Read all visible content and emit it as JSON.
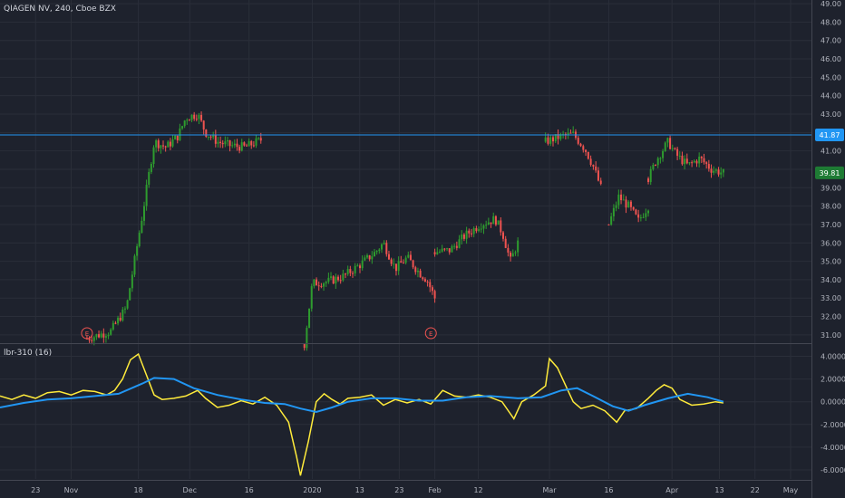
{
  "symbol_legend": "QIAGEN NV, 240, Cboe BZX",
  "indicator_legend": "lbr-310 (16)",
  "colors": {
    "background": "#1e222d",
    "grid": "#2a2e39",
    "up": "#26a69a",
    "up_bright": "#2e9c2e",
    "down": "#ef5350",
    "level_line": "#2196f3",
    "last_price_tag": "#1e7b34",
    "fast_line": "#ffeb3b",
    "slow_line": "#2196f3"
  },
  "horizontal_level": {
    "value": 41.87,
    "label": "41.87"
  },
  "last_price": {
    "value": 39.81,
    "label": "39.81"
  },
  "earnings_markers": [
    {
      "label": "E",
      "x_date": "2019-11-05"
    },
    {
      "label": "E",
      "x_date": "2020-01-31"
    }
  ],
  "chart_data": [
    {
      "type": "candlestick",
      "title": "QIAGEN NV, 240, Cboe BZX",
      "ylim": [
        30.6,
        49.2
      ],
      "y_ticks": [
        "49.00",
        "48.00",
        "47.00",
        "46.00",
        "45.00",
        "44.00",
        "43.00",
        "42.00",
        "41.00",
        "40.00",
        "39.00",
        "38.00",
        "37.00",
        "36.00",
        "35.00",
        "34.00",
        "33.00",
        "32.00",
        "31.00"
      ],
      "x_ticks": [
        "23",
        "Nov",
        "18",
        "Dec",
        "16",
        "2020",
        "13",
        "23",
        "Feb",
        "12",
        "Mar",
        "16",
        "Apr",
        "13",
        "22",
        "May"
      ],
      "segments": [
        {
          "start_date": "2019-11-05",
          "end_date": "2019-12-19",
          "path": [
            [
              30.8,
              0
            ],
            [
              31.2,
              6
            ],
            [
              32.5,
              10
            ],
            [
              37.5,
              14
            ],
            [
              41.5,
              17
            ],
            [
              41.2,
              20
            ],
            [
              41.8,
              23
            ],
            [
              42.8,
              25
            ],
            [
              43.0,
              28
            ],
            [
              42.0,
              30
            ],
            [
              41.5,
              33
            ],
            [
              41.3,
              36
            ],
            [
              41.2,
              40
            ],
            [
              41.6,
              44
            ]
          ]
        },
        {
          "start_date": "2019-12-30",
          "end_date": "2020-02-01",
          "path": [
            [
              30.5,
              0
            ],
            [
              33.8,
              2
            ],
            [
              33.9,
              6
            ],
            [
              34.2,
              10
            ],
            [
              34.8,
              14
            ],
            [
              35.5,
              18
            ],
            [
              36.0,
              20
            ],
            [
              34.6,
              23
            ],
            [
              35.2,
              26
            ],
            [
              34.4,
              29
            ],
            [
              34.0,
              31
            ],
            [
              33.0,
              33
            ]
          ]
        },
        {
          "start_date": "2020-02-01",
          "end_date": "2020-02-22",
          "path": [
            [
              35.5,
              0
            ],
            [
              35.6,
              4
            ],
            [
              36.4,
              8
            ],
            [
              37.0,
              12
            ],
            [
              37.3,
              16
            ],
            [
              36.5,
              18
            ],
            [
              35.0,
              20
            ],
            [
              36.0,
              22
            ]
          ]
        },
        {
          "start_date": "2020-02-29",
          "end_date": "2020-03-14",
          "path": [
            [
              41.5,
              0
            ],
            [
              41.8,
              4
            ],
            [
              41.9,
              7
            ],
            [
              41.1,
              10
            ],
            [
              40.2,
              12
            ],
            [
              39.0,
              14
            ]
          ]
        },
        {
          "start_date": "2020-03-16",
          "end_date": "2020-03-26",
          "path": [
            [
              37.0,
              0
            ],
            [
              38.5,
              2
            ],
            [
              38.0,
              4
            ],
            [
              37.2,
              6
            ],
            [
              38.0,
              8
            ]
          ]
        },
        {
          "start_date": "2020-03-26",
          "end_date": "2020-04-14",
          "path": [
            [
              39.5,
              0
            ],
            [
              40.5,
              2
            ],
            [
              41.5,
              5
            ],
            [
              40.8,
              7
            ],
            [
              40.2,
              10
            ],
            [
              40.6,
              13
            ],
            [
              40.0,
              16
            ],
            [
              39.8,
              19
            ]
          ]
        }
      ]
    },
    {
      "type": "line",
      "title": "lbr-310 (16)",
      "ylim": [
        -6.8,
        5.0
      ],
      "y_ticks": [
        "4.0000",
        "2.0000",
        "0.0000",
        "-2.0000",
        "-4.0000",
        "-6.0000"
      ],
      "series": [
        {
          "color": "#ffeb3b",
          "points": [
            [
              "2019-10-14",
              0.5
            ],
            [
              "2019-10-17",
              0.2
            ],
            [
              "2019-10-20",
              0.6
            ],
            [
              "2019-10-23",
              0.3
            ],
            [
              "2019-10-26",
              0.8
            ],
            [
              "2019-10-29",
              0.9
            ],
            [
              "2019-11-01",
              0.6
            ],
            [
              "2019-11-04",
              1.0
            ],
            [
              "2019-11-07",
              0.9
            ],
            [
              "2019-11-10",
              0.6
            ],
            [
              "2019-11-12",
              1.0
            ],
            [
              "2019-11-14",
              2.0
            ],
            [
              "2019-11-16",
              3.7
            ],
            [
              "2019-11-18",
              4.2
            ],
            [
              "2019-11-20",
              2.4
            ],
            [
              "2019-11-22",
              0.6
            ],
            [
              "2019-11-24",
              0.2
            ],
            [
              "2019-11-27",
              0.3
            ],
            [
              "2019-11-30",
              0.5
            ],
            [
              "2019-12-03",
              1.0
            ],
            [
              "2019-12-05",
              0.3
            ],
            [
              "2019-12-08",
              -0.5
            ],
            [
              "2019-12-11",
              -0.3
            ],
            [
              "2019-12-14",
              0.1
            ],
            [
              "2019-12-17",
              -0.2
            ],
            [
              "2019-12-20",
              0.4
            ],
            [
              "2019-12-23",
              -0.3
            ],
            [
              "2019-12-26",
              -1.8
            ],
            [
              "2019-12-28",
              -4.8
            ],
            [
              "2019-12-29",
              -6.5
            ],
            [
              "2019-12-31",
              -3.5
            ],
            [
              "2020-01-02",
              0.0
            ],
            [
              "2020-01-04",
              0.7
            ],
            [
              "2020-01-06",
              0.2
            ],
            [
              "2020-01-08",
              -0.2
            ],
            [
              "2020-01-10",
              0.3
            ],
            [
              "2020-01-13",
              0.4
            ],
            [
              "2020-01-16",
              0.6
            ],
            [
              "2020-01-19",
              -0.3
            ],
            [
              "2020-01-22",
              0.2
            ],
            [
              "2020-01-25",
              -0.1
            ],
            [
              "2020-01-28",
              0.2
            ],
            [
              "2020-01-31",
              -0.2
            ],
            [
              "2020-02-03",
              1.0
            ],
            [
              "2020-02-06",
              0.5
            ],
            [
              "2020-02-09",
              0.4
            ],
            [
              "2020-02-12",
              0.6
            ],
            [
              "2020-02-15",
              0.4
            ],
            [
              "2020-02-18",
              0.0
            ],
            [
              "2020-02-21",
              -1.5
            ],
            [
              "2020-02-23",
              0.0
            ],
            [
              "2020-02-26",
              0.6
            ],
            [
              "2020-02-29",
              1.4
            ],
            [
              "2020-03-01",
              3.8
            ],
            [
              "2020-03-03",
              3.0
            ],
            [
              "2020-03-05",
              1.5
            ],
            [
              "2020-03-07",
              0.0
            ],
            [
              "2020-03-09",
              -0.6
            ],
            [
              "2020-03-12",
              -0.3
            ],
            [
              "2020-03-15",
              -0.8
            ],
            [
              "2020-03-18",
              -1.8
            ],
            [
              "2020-03-20",
              -0.8
            ],
            [
              "2020-03-23",
              -0.6
            ],
            [
              "2020-03-26",
              0.3
            ],
            [
              "2020-03-28",
              1.0
            ],
            [
              "2020-03-30",
              1.5
            ],
            [
              "2020-04-01",
              1.2
            ],
            [
              "2020-04-03",
              0.2
            ],
            [
              "2020-04-06",
              -0.3
            ],
            [
              "2020-04-09",
              -0.2
            ],
            [
              "2020-04-12",
              0.0
            ],
            [
              "2020-04-14",
              -0.1
            ]
          ]
        },
        {
          "color": "#2196f3",
          "points": [
            [
              "2019-10-14",
              -0.5
            ],
            [
              "2019-10-20",
              -0.1
            ],
            [
              "2019-10-26",
              0.2
            ],
            [
              "2019-11-01",
              0.3
            ],
            [
              "2019-11-07",
              0.5
            ],
            [
              "2019-11-13",
              0.7
            ],
            [
              "2019-11-19",
              1.6
            ],
            [
              "2019-11-22",
              2.1
            ],
            [
              "2019-11-27",
              2.0
            ],
            [
              "2019-12-02",
              1.2
            ],
            [
              "2019-12-08",
              0.6
            ],
            [
              "2019-12-14",
              0.2
            ],
            [
              "2019-12-20",
              -0.1
            ],
            [
              "2019-12-25",
              -0.2
            ],
            [
              "2019-12-29",
              -0.6
            ],
            [
              "2020-01-02",
              -0.9
            ],
            [
              "2020-01-06",
              -0.5
            ],
            [
              "2020-01-10",
              0.0
            ],
            [
              "2020-01-16",
              0.3
            ],
            [
              "2020-01-22",
              0.3
            ],
            [
              "2020-01-28",
              0.1
            ],
            [
              "2020-02-03",
              0.1
            ],
            [
              "2020-02-09",
              0.4
            ],
            [
              "2020-02-15",
              0.5
            ],
            [
              "2020-02-22",
              0.3
            ],
            [
              "2020-02-28",
              0.4
            ],
            [
              "2020-03-04",
              1.0
            ],
            [
              "2020-03-08",
              1.2
            ],
            [
              "2020-03-12",
              0.5
            ],
            [
              "2020-03-17",
              -0.4
            ],
            [
              "2020-03-21",
              -0.8
            ],
            [
              "2020-03-25",
              -0.3
            ],
            [
              "2020-03-31",
              0.3
            ],
            [
              "2020-04-05",
              0.7
            ],
            [
              "2020-04-10",
              0.4
            ],
            [
              "2020-04-14",
              0.0
            ]
          ]
        }
      ]
    }
  ]
}
